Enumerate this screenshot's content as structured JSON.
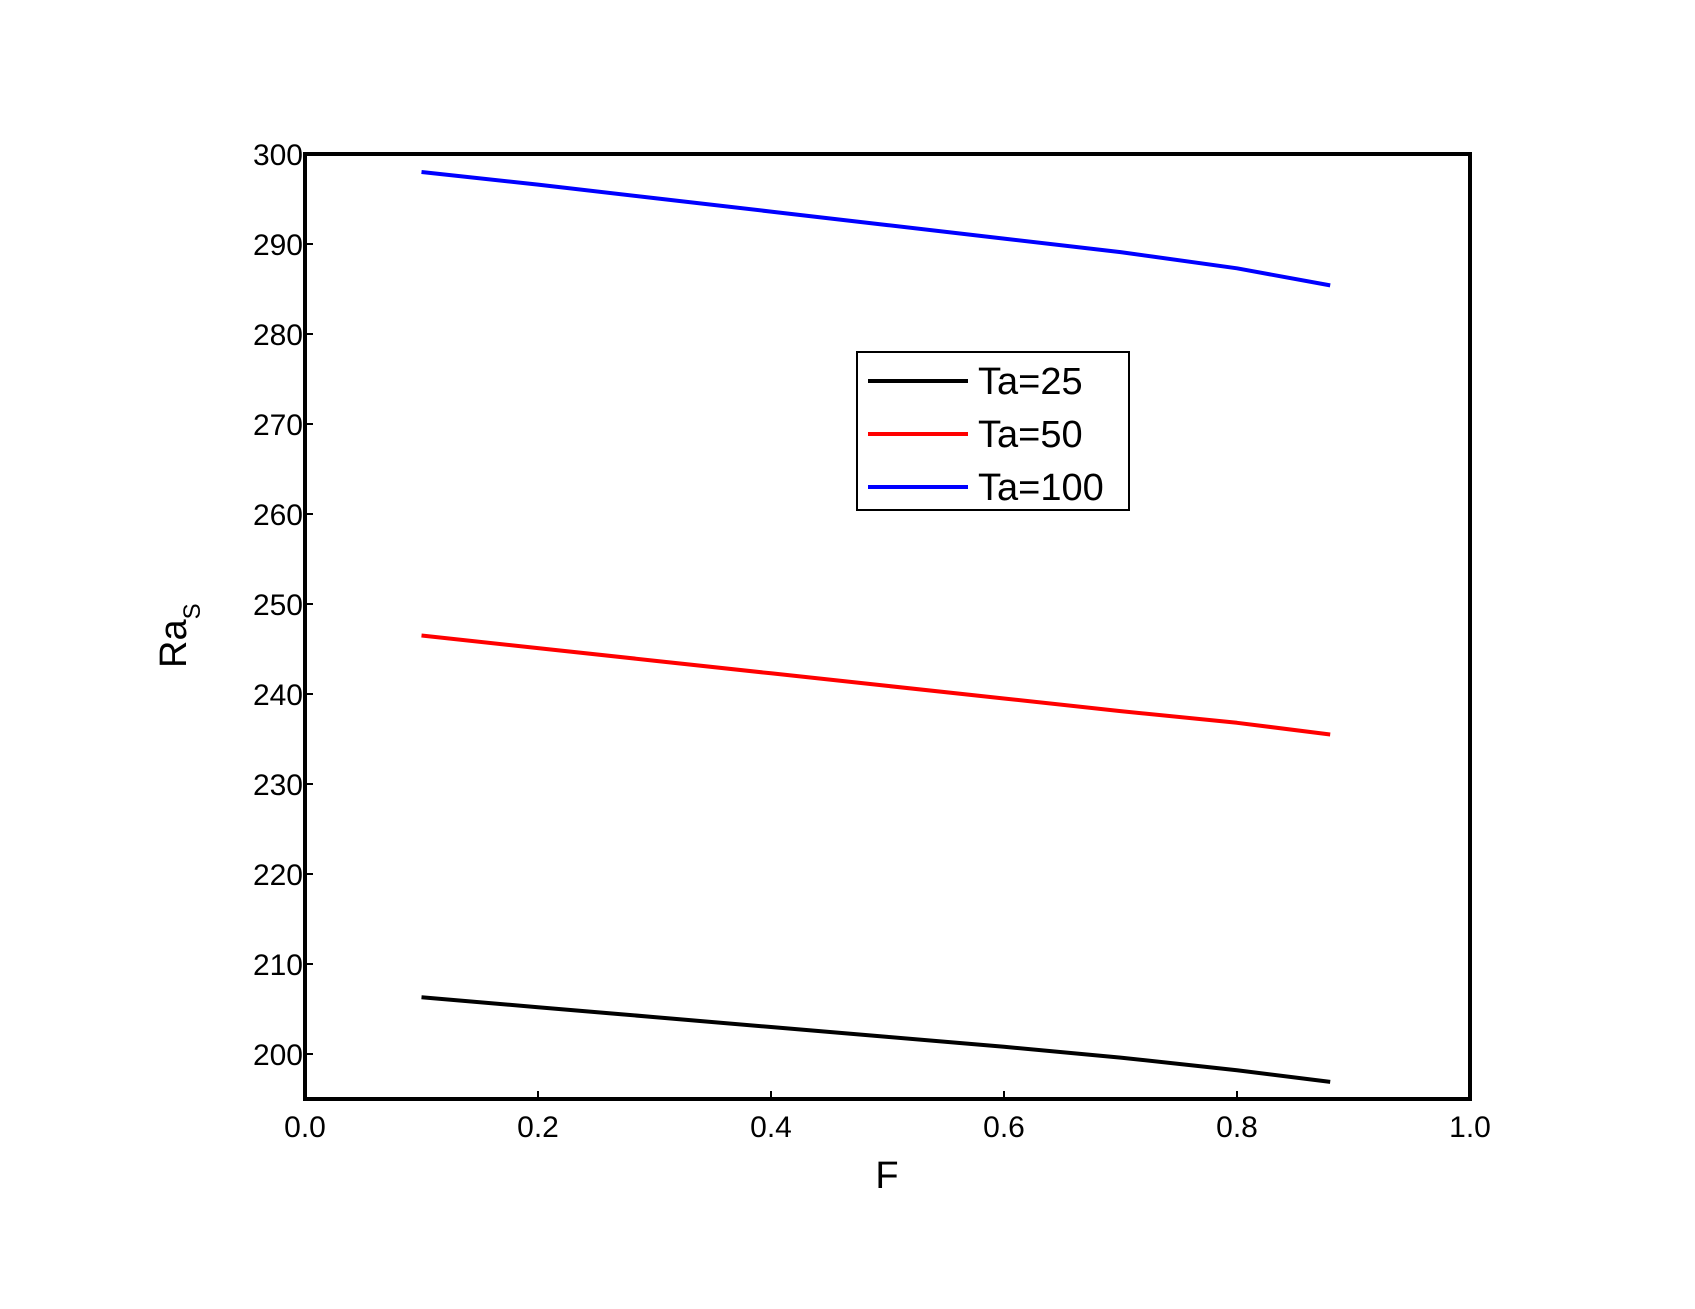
{
  "chart_data": {
    "type": "line",
    "xlabel": "F",
    "ylabel": "Ra",
    "ylabel_subscript": "S",
    "xlim": [
      0.0,
      1.0
    ],
    "ylim": [
      195,
      300
    ],
    "xticks": [
      "0.0",
      "0.2",
      "0.4",
      "0.6",
      "0.8",
      "1.0"
    ],
    "yticks": [
      "200",
      "210",
      "220",
      "230",
      "240",
      "250",
      "260",
      "270",
      "280",
      "290",
      "300"
    ],
    "grid": false,
    "legend_position": "upper-center-right",
    "x": [
      0.1,
      0.2,
      0.3,
      0.4,
      0.5,
      0.6,
      0.7,
      0.8,
      0.88
    ],
    "series": [
      {
        "name": "Ta=25",
        "color": "#000000",
        "values": [
          206.3,
          205.2,
          204.1,
          203.0,
          201.9,
          200.8,
          199.6,
          198.2,
          196.9
        ]
      },
      {
        "name": "Ta=50",
        "color": "#ff0000",
        "values": [
          246.5,
          245.1,
          243.7,
          242.3,
          240.9,
          239.5,
          238.1,
          236.8,
          235.5
        ]
      },
      {
        "name": "Ta=100",
        "color": "#0000ff",
        "values": [
          298.0,
          296.6,
          295.1,
          293.6,
          292.1,
          290.6,
          289.1,
          287.3,
          285.4
        ]
      }
    ]
  }
}
